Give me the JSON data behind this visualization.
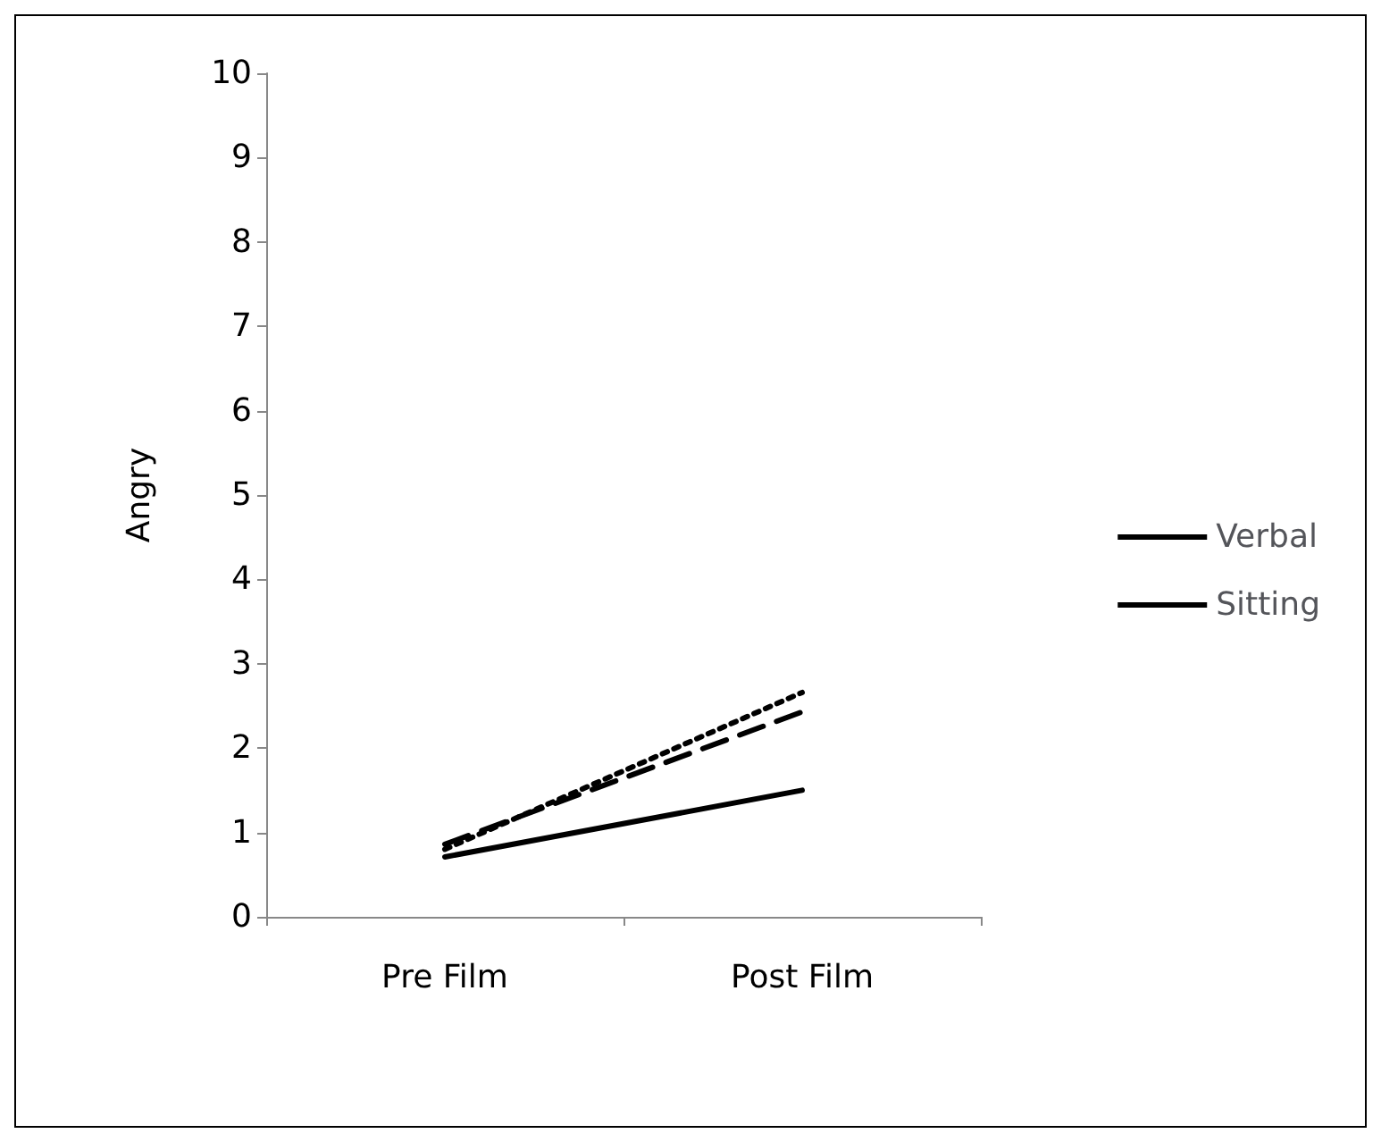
{
  "chart_data": {
    "type": "line",
    "ylabel": "Angry",
    "categories": [
      "Pre Film",
      "Post Film"
    ],
    "ylim": [
      0,
      10
    ],
    "yticks": [
      0,
      1,
      2,
      3,
      4,
      5,
      6,
      7,
      8,
      9,
      10
    ],
    "grid": false,
    "legend": "right",
    "marker": "none",
    "series": [
      {
        "color": "#000000",
        "line_style": "solid",
        "values": [
          0.71,
          1.5
        ]
      },
      {
        "name": "Verbal",
        "color": "#000000",
        "line_style": "dashed",
        "values": [
          0.86,
          2.43
        ]
      },
      {
        "name": "Sitting",
        "color": "#000000",
        "line_style": "dotted",
        "values": [
          0.8,
          2.66
        ]
      }
    ]
  }
}
